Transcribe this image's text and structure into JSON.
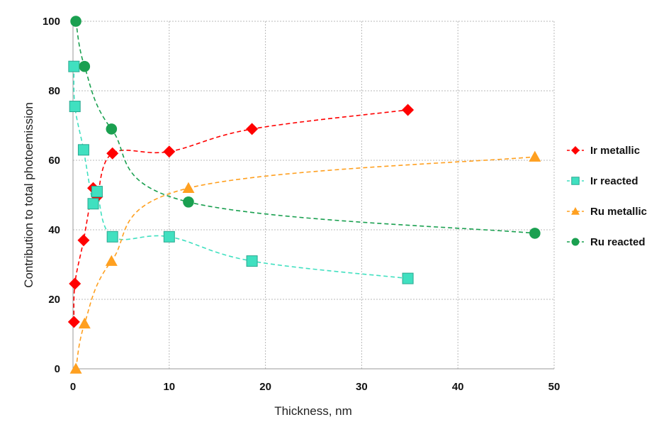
{
  "chart_data": {
    "type": "scatter",
    "xlabel": "Thickness, nm",
    "ylabel": "Contribution to total photoemission",
    "xlim": [
      0,
      50
    ],
    "ylim": [
      0,
      100
    ],
    "xticks": [
      0,
      10,
      20,
      30,
      40,
      50
    ],
    "yticks": [
      0,
      20,
      40,
      60,
      80,
      100
    ],
    "grid": true,
    "legend_position": "right",
    "series": [
      {
        "name": "Ir metallic",
        "marker": "diamond",
        "color": "#ff0000",
        "x": [
          0.1,
          0.2,
          1.1,
          2.1,
          2.5,
          4.1,
          10,
          18.6,
          34.8
        ],
        "y": [
          13.5,
          24.5,
          37,
          52,
          49.5,
          62,
          62.5,
          69,
          74.5
        ]
      },
      {
        "name": "Ir reacted",
        "marker": "square",
        "color": "#40e0c0",
        "x": [
          0.1,
          0.2,
          1.1,
          2.1,
          2.5,
          4.1,
          10,
          18.6,
          34.8
        ],
        "y": [
          87,
          75.5,
          63,
          47.5,
          51,
          38,
          38,
          31,
          26
        ]
      },
      {
        "name": "Ru metallic",
        "marker": "triangle",
        "color": "#ffa020",
        "x": [
          0.3,
          1.2,
          4,
          12,
          48
        ],
        "y": [
          0,
          13,
          31,
          52,
          61
        ]
      },
      {
        "name": "Ru reacted",
        "marker": "circle",
        "color": "#1aa050",
        "x": [
          0.3,
          1.2,
          4,
          12,
          48
        ],
        "y": [
          100,
          87,
          69,
          48,
          39
        ]
      }
    ]
  }
}
